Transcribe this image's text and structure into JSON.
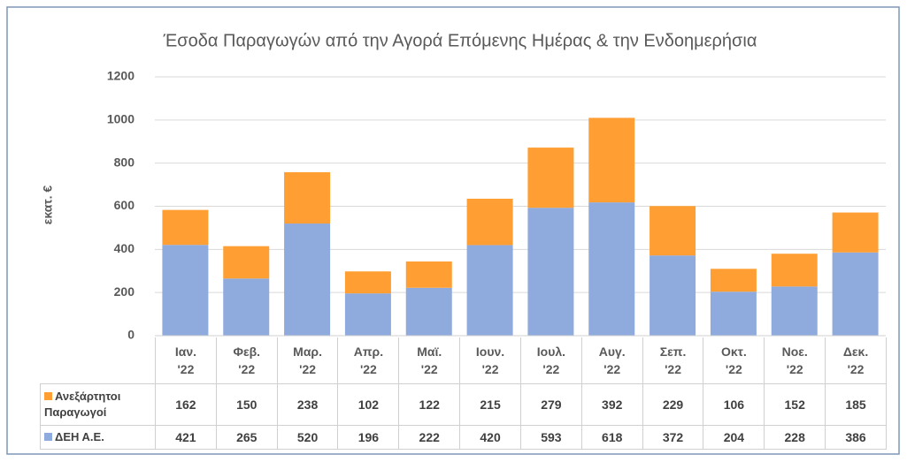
{
  "chart_data": {
    "type": "stacked_bar",
    "title": "Έσοδα Παραγωγών από την Αγορά Επόμενης Ημέρας & την Ενδοημερήσια",
    "y_label": "εκατ. €",
    "categories": [
      "Ιαν. '22",
      "Φεβ. '22",
      "Μαρ. '22",
      "Απρ. '22",
      "Μαϊ. '22",
      "Ιουν. '22",
      "Ιουλ. '22",
      "Αυγ. '22",
      "Σεπ. '22",
      "Οκτ. '22",
      "Νοε. '22",
      "Δεκ. '22"
    ],
    "series": [
      {
        "name": "Ανεξάρτητοι Παραγωγοί",
        "color": "#ff9f33",
        "values": [
          162,
          150,
          238,
          102,
          122,
          215,
          279,
          392,
          229,
          106,
          152,
          185
        ]
      },
      {
        "name": "ΔΕΗ Α.Ε.",
        "color": "#8faadc",
        "values": [
          421,
          265,
          520,
          196,
          222,
          420,
          593,
          618,
          372,
          204,
          228,
          386
        ]
      }
    ],
    "ylim": [
      0,
      1200
    ],
    "yticks": [
      0,
      200,
      400,
      600,
      800,
      1000,
      1200
    ],
    "grid": true,
    "data_table": true
  }
}
